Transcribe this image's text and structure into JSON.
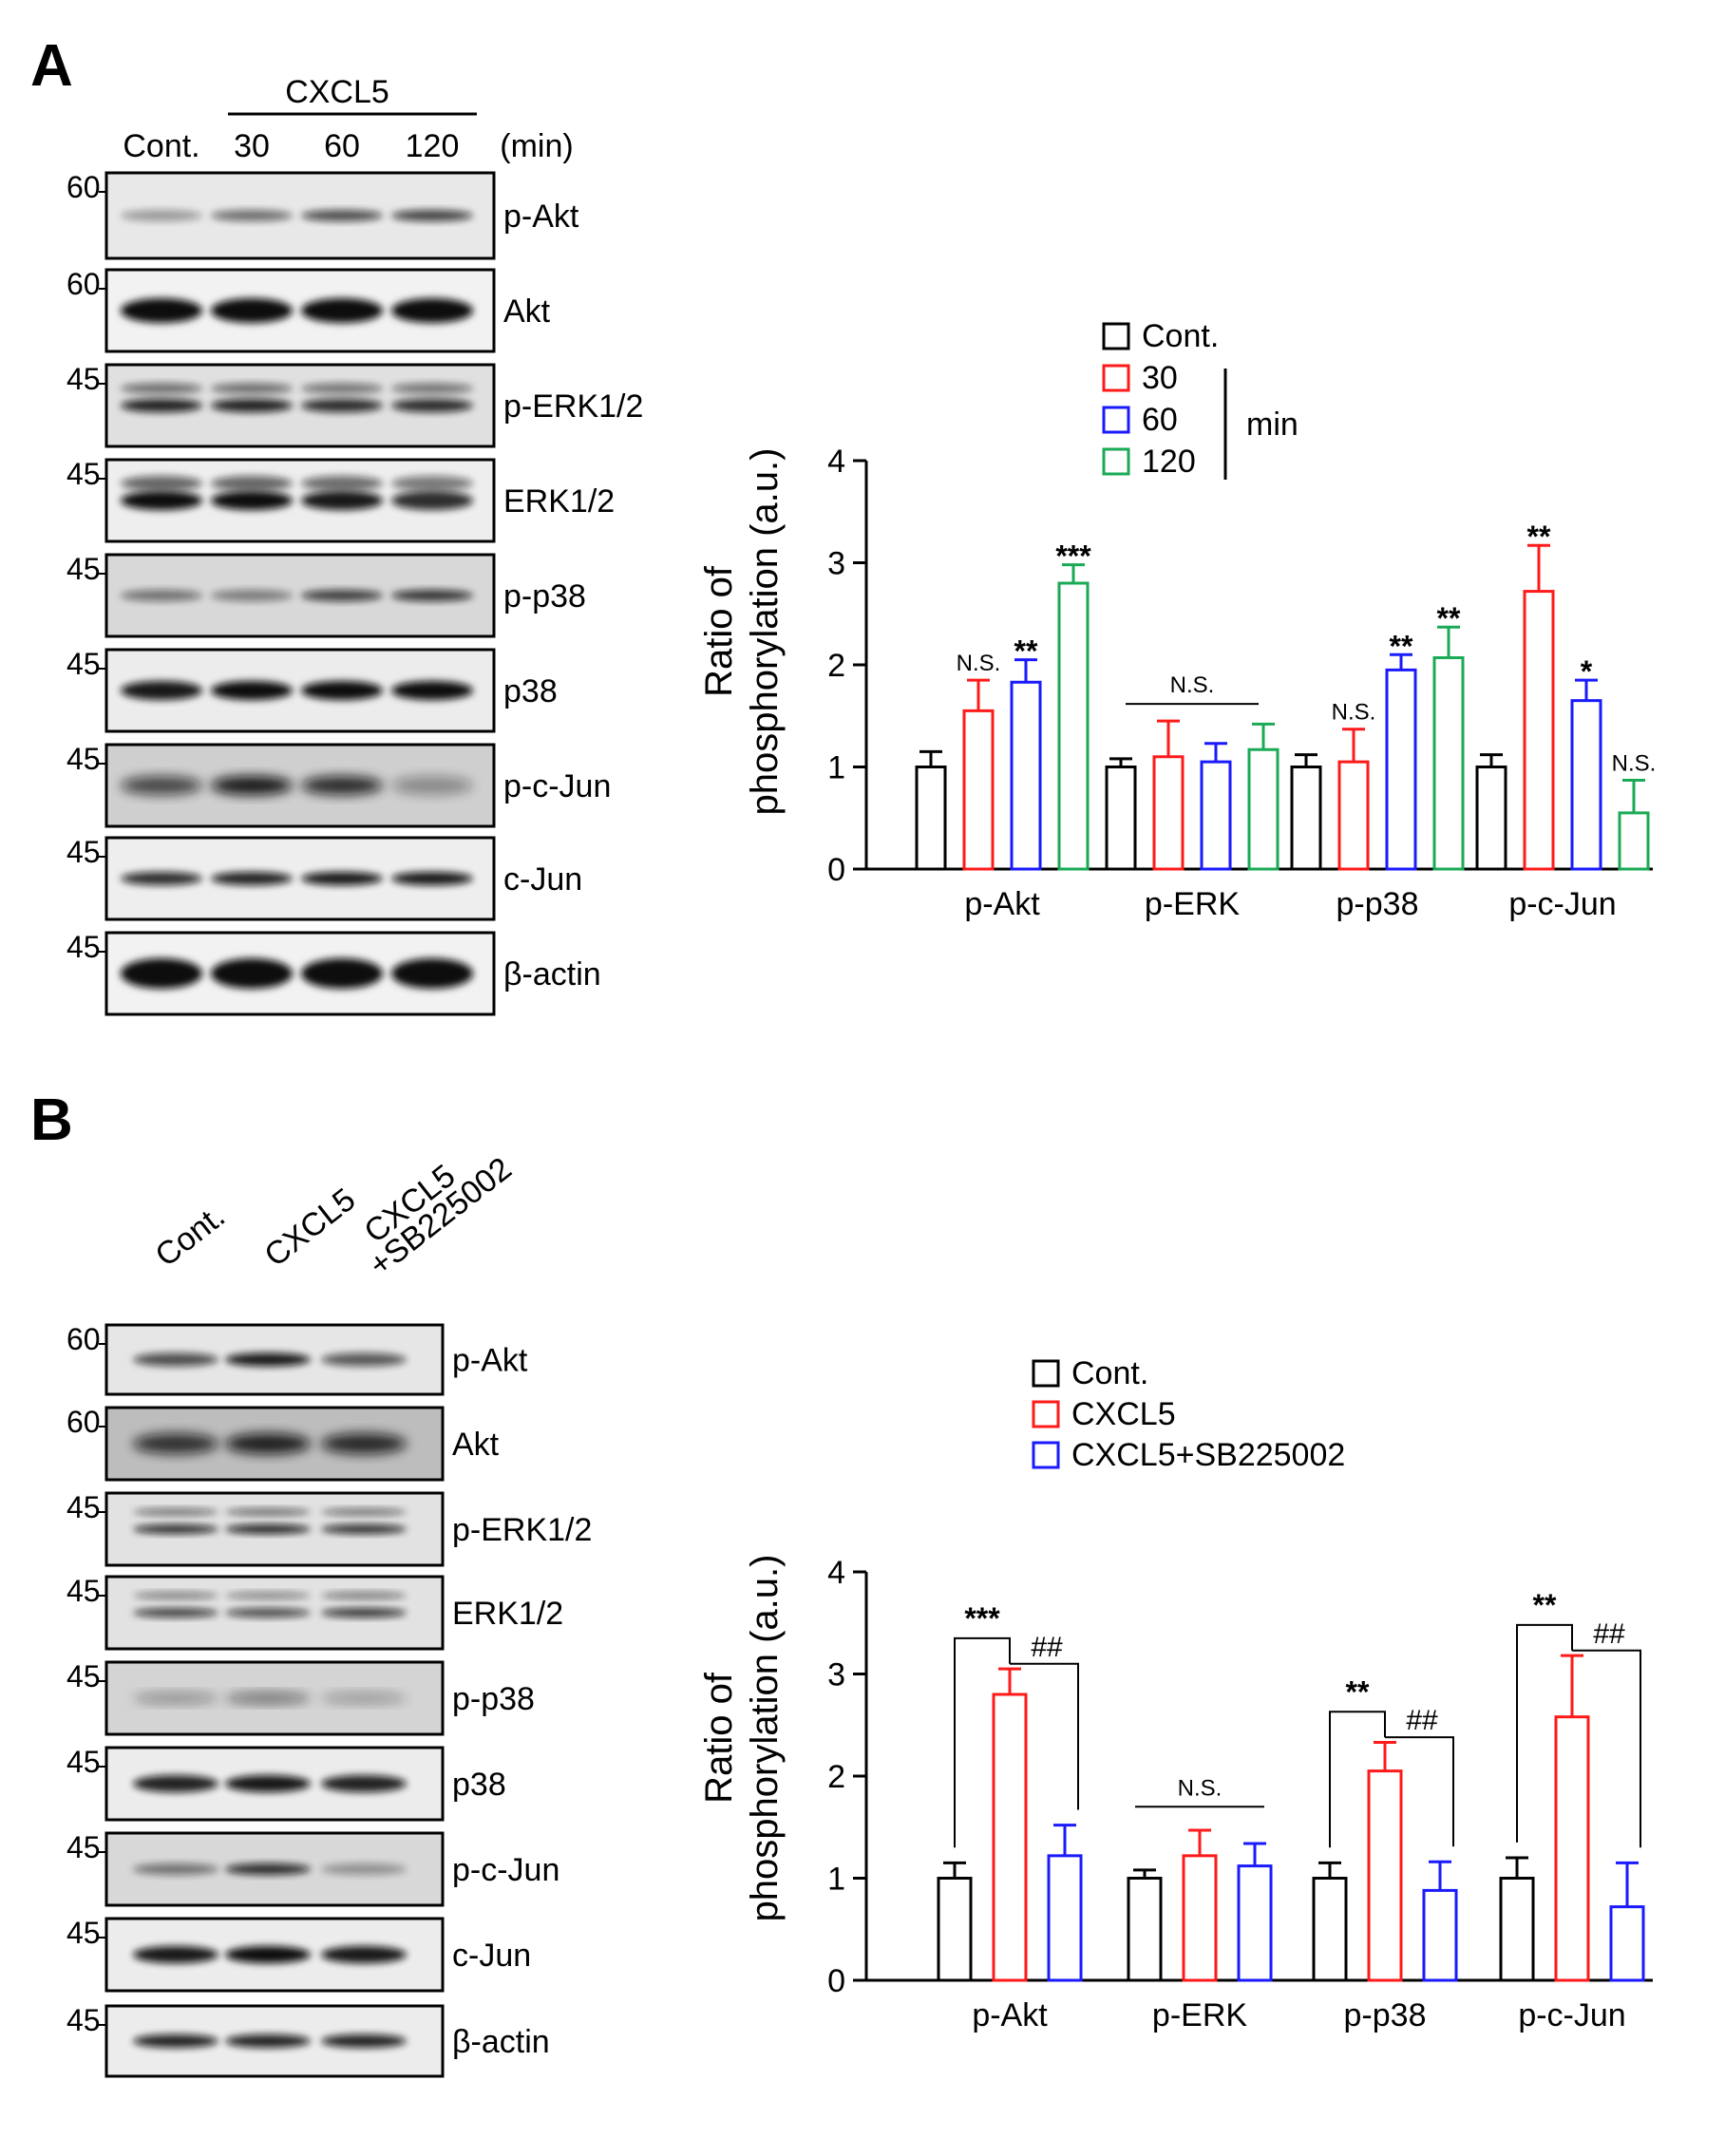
{
  "panels": [
    {
      "letter": "A",
      "treatment_header": "CXCL5",
      "lanes": [
        "Cont.",
        "30",
        "60",
        "120"
      ],
      "unit": "(min)",
      "blots": [
        {
          "mw": "60",
          "label": "p-Akt"
        },
        {
          "mw": "60",
          "label": "Akt"
        },
        {
          "mw": "45",
          "label": "p-ERK1/2"
        },
        {
          "mw": "45",
          "label": "ERK1/2"
        },
        {
          "mw": "45",
          "label": "p-p38"
        },
        {
          "mw": "45",
          "label": "p38"
        },
        {
          "mw": "45",
          "label": "p-c-Jun"
        },
        {
          "mw": "45",
          "label": "c-Jun"
        },
        {
          "mw": "45",
          "label": "β-actin"
        }
      ]
    },
    {
      "letter": "B",
      "lanes": [
        "Cont.",
        "CXCL5",
        "CXCL5",
        "+SB225002"
      ],
      "blots": [
        {
          "mw": "60",
          "label": "p-Akt"
        },
        {
          "mw": "60",
          "label": "Akt"
        },
        {
          "mw": "45",
          "label": "p-ERK1/2"
        },
        {
          "mw": "45",
          "label": "ERK1/2"
        },
        {
          "mw": "45",
          "label": "p-p38"
        },
        {
          "mw": "45",
          "label": "p38"
        },
        {
          "mw": "45",
          "label": "p-c-Jun"
        },
        {
          "mw": "45",
          "label": "c-Jun"
        },
        {
          "mw": "45",
          "label": "β-actin"
        }
      ]
    }
  ],
  "chart_data": [
    {
      "type": "bar",
      "ylabel_line1": "Ratio of",
      "ylabel_line2": "phosphorylation (a.u.)",
      "ylim": [
        0,
        4
      ],
      "yticks": [
        "0",
        "1",
        "2",
        "3",
        "4"
      ],
      "categories": [
        "p-Akt",
        "p-ERK",
        "p-p38",
        "p-c-Jun"
      ],
      "legend_unit": "min",
      "series": [
        {
          "name": "Cont.",
          "color": "#000000",
          "values": [
            1.0,
            1.0,
            1.0,
            1.0
          ],
          "errors": [
            0.15,
            0.08,
            0.12,
            0.12
          ]
        },
        {
          "name": "30",
          "color": "#ff1a1a",
          "values": [
            1.55,
            1.1,
            1.05,
            2.72
          ],
          "errors": [
            0.3,
            0.35,
            0.32,
            0.45
          ]
        },
        {
          "name": "60",
          "color": "#1a1aff",
          "values": [
            1.83,
            1.05,
            1.95,
            1.65
          ],
          "errors": [
            0.22,
            0.18,
            0.15,
            0.2
          ]
        },
        {
          "name": "120",
          "color": "#1aaa55",
          "values": [
            2.8,
            1.17,
            2.07,
            0.55
          ],
          "errors": [
            0.18,
            0.25,
            0.3,
            0.32
          ]
        }
      ],
      "annotations": [
        {
          "cat": 0,
          "series": 1,
          "text": "N.S."
        },
        {
          "cat": 0,
          "series": 2,
          "text": "**"
        },
        {
          "cat": 0,
          "series": 3,
          "text": "***"
        },
        {
          "cat": 1,
          "series": -1,
          "text": "N.S."
        },
        {
          "cat": 2,
          "series": 1,
          "text": "N.S."
        },
        {
          "cat": 2,
          "series": 2,
          "text": "**"
        },
        {
          "cat": 2,
          "series": 3,
          "text": "**"
        },
        {
          "cat": 3,
          "series": 1,
          "text": "**"
        },
        {
          "cat": 3,
          "series": 2,
          "text": "*"
        },
        {
          "cat": 3,
          "series": 3,
          "text": "N.S."
        }
      ]
    },
    {
      "type": "bar",
      "ylabel_line1": "Ratio of",
      "ylabel_line2": "phosphorylation (a.u.)",
      "ylim": [
        0,
        4
      ],
      "yticks": [
        "0",
        "1",
        "2",
        "3",
        "4"
      ],
      "categories": [
        "p-Akt",
        "p-ERK",
        "p-p38",
        "p-c-Jun"
      ],
      "series": [
        {
          "name": "Cont.",
          "color": "#000000",
          "values": [
            1.0,
            1.0,
            1.0,
            1.0
          ],
          "errors": [
            0.15,
            0.08,
            0.15,
            0.2
          ]
        },
        {
          "name": "CXCL5",
          "color": "#ff1a1a",
          "values": [
            2.8,
            1.22,
            2.05,
            2.58
          ],
          "errors": [
            0.25,
            0.25,
            0.28,
            0.6
          ]
        },
        {
          "name": "CXCL5+SB225002",
          "color": "#1a1aff",
          "values": [
            1.22,
            1.12,
            0.88,
            0.72
          ],
          "errors": [
            0.3,
            0.22,
            0.28,
            0.43
          ]
        }
      ],
      "annotations": [
        {
          "cat": 0,
          "kind": "bracket",
          "text1": "***",
          "text2": "##"
        },
        {
          "cat": 1,
          "kind": "ns",
          "text": "N.S."
        },
        {
          "cat": 2,
          "kind": "bracket",
          "text1": "**",
          "text2": "##"
        },
        {
          "cat": 3,
          "kind": "bracket",
          "text1": "**",
          "text2": "##"
        }
      ]
    }
  ]
}
